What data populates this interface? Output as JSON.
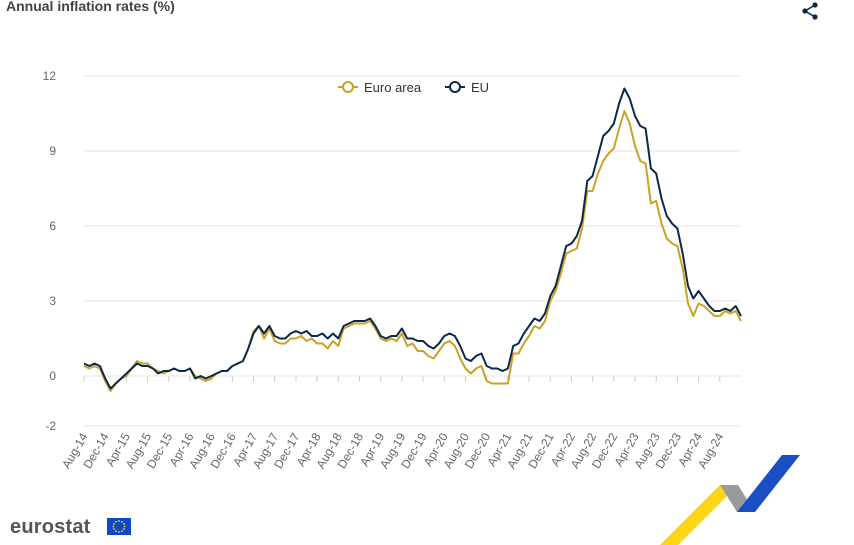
{
  "header": {
    "title": "Annual inflation rates (%)",
    "share_icon": "share-icon"
  },
  "footer": {
    "logo_text": "eurostat",
    "flag_icon": "eu-flag-icon"
  },
  "colors": {
    "euro_area": "#c9a227",
    "eu": "#0b2a4a",
    "grid": "#e6e6e6"
  },
  "chart_data": {
    "type": "line",
    "title": "Annual inflation rates (%)",
    "xlabel": "",
    "ylabel": "",
    "ylim": [
      -2,
      12
    ],
    "yticks": [
      -2,
      0,
      3,
      6,
      9,
      12
    ],
    "grid": true,
    "legend_position": "top-center",
    "x_tick_labels": [
      "Aug-14",
      "Dec-14",
      "Apr-15",
      "Aug-15",
      "Dec-15",
      "Apr-16",
      "Aug-16",
      "Dec-16",
      "Apr-17",
      "Aug-17",
      "Dec-17",
      "Apr-18",
      "Aug-18",
      "Dec-18",
      "Apr-19",
      "Aug-19",
      "Dec-19",
      "Apr-20",
      "Aug-20",
      "Dec-20",
      "Apr-21",
      "Aug-21",
      "Dec-21",
      "Apr-22",
      "Aug-22",
      "Dec-22",
      "Apr-23",
      "Aug-23",
      "Dec-23",
      "Apr-24",
      "Aug-24"
    ],
    "x_start": "Aug-14",
    "x_end": "Sep-24",
    "series": [
      {
        "name": "Euro area",
        "values": [
          0.4,
          0.3,
          0.4,
          0.3,
          -0.2,
          -0.6,
          -0.3,
          -0.1,
          0.0,
          0.3,
          0.6,
          0.5,
          0.5,
          0.3,
          0.2,
          0.1,
          0.2,
          0.3,
          0.2,
          0.2,
          0.3,
          0.0,
          -0.1,
          -0.2,
          -0.1,
          0.1,
          0.2,
          0.2,
          0.4,
          0.5,
          0.6,
          1.1,
          1.8,
          2.0,
          1.5,
          1.9,
          1.4,
          1.3,
          1.3,
          1.5,
          1.5,
          1.6,
          1.4,
          1.5,
          1.3,
          1.3,
          1.1,
          1.4,
          1.2,
          1.9,
          2.0,
          2.1,
          2.1,
          2.1,
          2.2,
          1.9,
          1.5,
          1.4,
          1.5,
          1.4,
          1.7,
          1.2,
          1.3,
          1.0,
          1.0,
          0.8,
          0.7,
          1.0,
          1.3,
          1.4,
          1.2,
          0.7,
          0.3,
          0.1,
          0.3,
          0.4,
          -0.2,
          -0.3,
          -0.3,
          -0.3,
          -0.3,
          0.9,
          0.9,
          1.3,
          1.6,
          2.0,
          1.9,
          2.2,
          3.0,
          3.4,
          4.1,
          4.9,
          5.0,
          5.1,
          5.9,
          7.4,
          7.4,
          8.1,
          8.6,
          8.9,
          9.1,
          9.9,
          10.6,
          10.1,
          9.2,
          8.6,
          8.5,
          6.9,
          7.0,
          6.1,
          5.5,
          5.3,
          5.2,
          4.3,
          2.9,
          2.4,
          2.9,
          2.8,
          2.6,
          2.4,
          2.4,
          2.6,
          2.5,
          2.6,
          2.2
        ]
      },
      {
        "name": "EU",
        "values": [
          0.5,
          0.4,
          0.5,
          0.4,
          -0.1,
          -0.5,
          -0.3,
          -0.1,
          0.1,
          0.3,
          0.5,
          0.4,
          0.4,
          0.3,
          0.1,
          0.2,
          0.2,
          0.3,
          0.2,
          0.2,
          0.3,
          -0.1,
          0.0,
          -0.1,
          0.0,
          0.1,
          0.2,
          0.2,
          0.4,
          0.5,
          0.6,
          1.1,
          1.7,
          2.0,
          1.7,
          2.0,
          1.6,
          1.5,
          1.5,
          1.7,
          1.8,
          1.7,
          1.8,
          1.6,
          1.6,
          1.7,
          1.5,
          1.7,
          1.5,
          2.0,
          2.1,
          2.2,
          2.2,
          2.2,
          2.3,
          2.0,
          1.6,
          1.5,
          1.6,
          1.6,
          1.9,
          1.5,
          1.5,
          1.4,
          1.4,
          1.2,
          1.1,
          1.3,
          1.6,
          1.7,
          1.6,
          1.2,
          0.7,
          0.6,
          0.8,
          0.9,
          0.4,
          0.3,
          0.3,
          0.2,
          0.3,
          1.2,
          1.3,
          1.7,
          2.0,
          2.3,
          2.2,
          2.5,
          3.2,
          3.6,
          4.4,
          5.2,
          5.3,
          5.6,
          6.2,
          7.8,
          8.0,
          8.8,
          9.6,
          9.8,
          10.1,
          10.9,
          11.5,
          11.1,
          10.4,
          10.0,
          9.9,
          8.3,
          8.1,
          7.1,
          6.4,
          6.1,
          5.9,
          4.9,
          3.6,
          3.1,
          3.4,
          3.1,
          2.8,
          2.6,
          2.6,
          2.7,
          2.6,
          2.8,
          2.4
        ]
      }
    ]
  }
}
